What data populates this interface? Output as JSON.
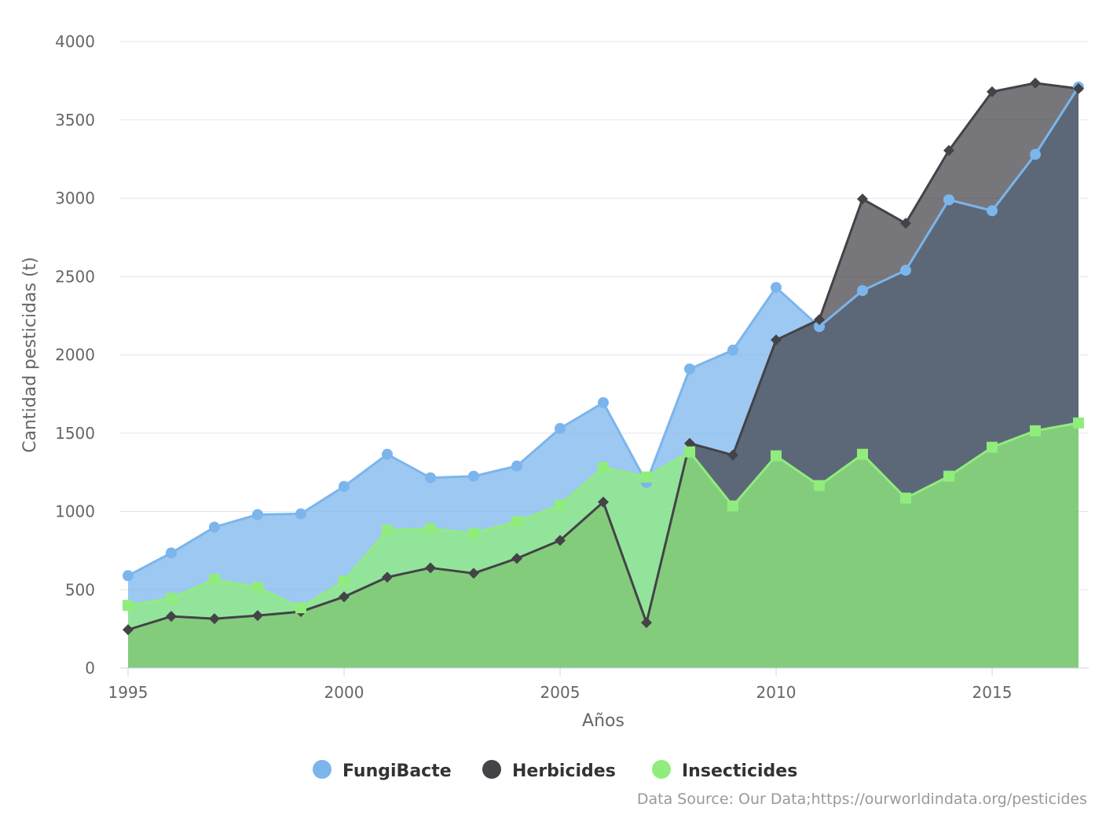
{
  "chart_data": {
    "type": "area",
    "x": [
      1995,
      1996,
      1997,
      1998,
      1999,
      2000,
      2001,
      2002,
      2003,
      2004,
      2005,
      2006,
      2007,
      2008,
      2009,
      2010,
      2011,
      2012,
      2013,
      2014,
      2015,
      2016,
      2017
    ],
    "series": [
      {
        "name": "FungiBacte",
        "color": "#7cb5ec",
        "marker": "circle",
        "values": [
          590,
          735,
          900,
          980,
          985,
          1160,
          1365,
          1215,
          1225,
          1290,
          1530,
          1695,
          1185,
          1910,
          2030,
          2430,
          2180,
          2410,
          2540,
          2990,
          2920,
          3280,
          3710
        ]
      },
      {
        "name": "Herbicides",
        "color": "#434348",
        "marker": "diamond",
        "values": [
          245,
          330,
          315,
          335,
          360,
          455,
          580,
          640,
          605,
          700,
          815,
          1060,
          290,
          1435,
          1360,
          2095,
          2225,
          2995,
          2840,
          3305,
          3680,
          3735,
          3700
        ]
      },
      {
        "name": "Insecticides",
        "color": "#90ed7d",
        "marker": "square",
        "values": [
          400,
          445,
          565,
          515,
          385,
          555,
          880,
          890,
          860,
          935,
          1040,
          1280,
          1220,
          1380,
          1035,
          1355,
          1165,
          1365,
          1085,
          1225,
          1410,
          1515,
          1565
        ]
      }
    ],
    "title": "",
    "xlabel": "Años",
    "ylabel": "Cantidad pesticidas (t)",
    "xlim": [
      1995,
      2017
    ],
    "ylim": [
      0,
      4000
    ],
    "x_ticks": [
      "1995",
      "2000",
      "2005",
      "2010",
      "2015"
    ],
    "y_ticks": [
      "0",
      "500",
      "1000",
      "1500",
      "2000",
      "2500",
      "3000",
      "3500",
      "4000"
    ],
    "grid": "horizontal",
    "legend_position": "bottom",
    "credit": "Data Source: Our Data;https://ourworldindata.org/pesticides"
  }
}
